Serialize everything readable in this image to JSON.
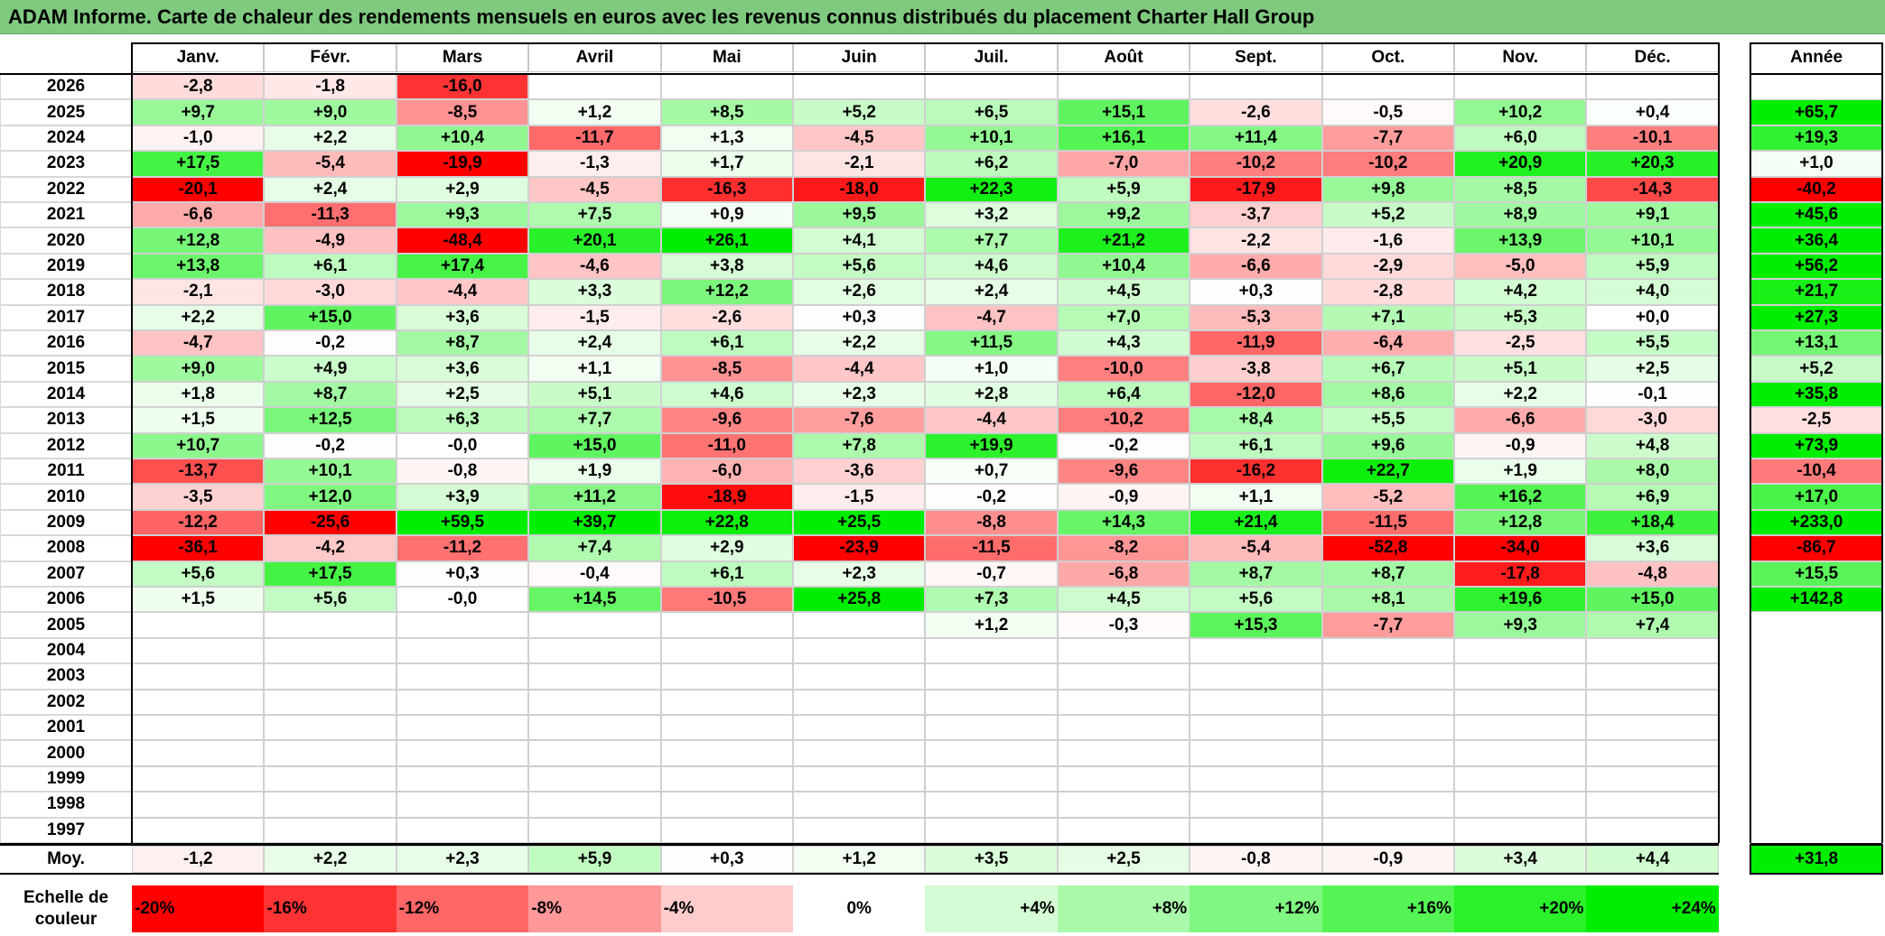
{
  "title": "ADAM Informe. Carte de chaleur des rendements mensuels en euros avec les revenus connus distribués du placement Charter Hall Group",
  "colors": {
    "title_bg": "#7fca7f",
    "neg_max": "#ff0000",
    "pos_max": "#00ee00",
    "neutral": "#ffffff"
  },
  "chart_data": {
    "type": "heatmap",
    "title": "ADAM Informe. Carte de chaleur des rendements mensuels en euros avec les revenus connus distribués du placement Charter Hall Group",
    "months": [
      "Janv.",
      "Févr.",
      "Mars",
      "Avril",
      "Mai",
      "Juin",
      "Juil.",
      "Août",
      "Sept.",
      "Oct.",
      "Nov.",
      "Déc."
    ],
    "year_header": "Année",
    "rows": [
      {
        "year": "2026",
        "values": [
          "-2,8",
          "-1,8",
          "-16,0",
          "",
          "",
          "",
          "",
          "",
          "",
          "",
          "",
          ""
        ],
        "annual": ""
      },
      {
        "year": "2025",
        "values": [
          "+9,7",
          "+9,0",
          "-8,5",
          "+1,2",
          "+8,5",
          "+5,2",
          "+6,5",
          "+15,1",
          "-2,6",
          "-0,5",
          "+10,2",
          "+0,4"
        ],
        "annual": "+65,7"
      },
      {
        "year": "2024",
        "values": [
          "-1,0",
          "+2,2",
          "+10,4",
          "-11,7",
          "+1,3",
          "-4,5",
          "+10,1",
          "+16,1",
          "+11,4",
          "-7,7",
          "+6,0",
          "-10,1"
        ],
        "annual": "+19,3"
      },
      {
        "year": "2023",
        "values": [
          "+17,5",
          "-5,4",
          "-19,9",
          "-1,3",
          "+1,7",
          "-2,1",
          "+6,2",
          "-7,0",
          "-10,2",
          "-10,2",
          "+20,9",
          "+20,3"
        ],
        "annual": "+1,0"
      },
      {
        "year": "2022",
        "values": [
          "-20,1",
          "+2,4",
          "+2,9",
          "-4,5",
          "-16,3",
          "-18,0",
          "+22,3",
          "+5,9",
          "-17,9",
          "+9,8",
          "+8,5",
          "-14,3"
        ],
        "annual": "-40,2"
      },
      {
        "year": "2021",
        "values": [
          "-6,6",
          "-11,3",
          "+9,3",
          "+7,5",
          "+0,9",
          "+9,5",
          "+3,2",
          "+9,2",
          "-3,7",
          "+5,2",
          "+8,9",
          "+9,1"
        ],
        "annual": "+45,6"
      },
      {
        "year": "2020",
        "values": [
          "+12,8",
          "-4,9",
          "-48,4",
          "+20,1",
          "+26,1",
          "+4,1",
          "+7,7",
          "+21,2",
          "-2,2",
          "-1,6",
          "+13,9",
          "+10,1"
        ],
        "annual": "+36,4"
      },
      {
        "year": "2019",
        "values": [
          "+13,8",
          "+6,1",
          "+17,4",
          "-4,6",
          "+3,8",
          "+5,6",
          "+4,6",
          "+10,4",
          "-6,6",
          "-2,9",
          "-5,0",
          "+5,9"
        ],
        "annual": "+56,2"
      },
      {
        "year": "2018",
        "values": [
          "-2,1",
          "-3,0",
          "-4,4",
          "+3,3",
          "+12,2",
          "+2,6",
          "+2,4",
          "+4,5",
          "+0,3",
          "-2,8",
          "+4,2",
          "+4,0"
        ],
        "annual": "+21,7"
      },
      {
        "year": "2017",
        "values": [
          "+2,2",
          "+15,0",
          "+3,6",
          "-1,5",
          "-2,6",
          "+0,3",
          "-4,7",
          "+7,0",
          "-5,3",
          "+7,1",
          "+5,3",
          "+0,0"
        ],
        "annual": "+27,3"
      },
      {
        "year": "2016",
        "values": [
          "-4,7",
          "-0,2",
          "+8,7",
          "+2,4",
          "+6,1",
          "+2,2",
          "+11,5",
          "+4,3",
          "-11,9",
          "-6,4",
          "-2,5",
          "+5,5"
        ],
        "annual": "+13,1"
      },
      {
        "year": "2015",
        "values": [
          "+9,0",
          "+4,9",
          "+3,6",
          "+1,1",
          "-8,5",
          "-4,4",
          "+1,0",
          "-10,0",
          "-3,8",
          "+6,7",
          "+5,1",
          "+2,5"
        ],
        "annual": "+5,2"
      },
      {
        "year": "2014",
        "values": [
          "+1,8",
          "+8,7",
          "+2,5",
          "+5,1",
          "+4,6",
          "+2,3",
          "+2,8",
          "+6,4",
          "-12,0",
          "+8,6",
          "+2,2",
          "-0,1"
        ],
        "annual": "+35,8"
      },
      {
        "year": "2013",
        "values": [
          "+1,5",
          "+12,5",
          "+6,3",
          "+7,7",
          "-9,6",
          "-7,6",
          "-4,4",
          "-10,2",
          "+8,4",
          "+5,5",
          "-6,6",
          "-3,0"
        ],
        "annual": "-2,5"
      },
      {
        "year": "2012",
        "values": [
          "+10,7",
          "-0,2",
          "-0,0",
          "+15,0",
          "-11,0",
          "+7,8",
          "+19,9",
          "-0,2",
          "+6,1",
          "+9,6",
          "-0,9",
          "+4,8"
        ],
        "annual": "+73,9"
      },
      {
        "year": "2011",
        "values": [
          "-13,7",
          "+10,1",
          "-0,8",
          "+1,9",
          "-6,0",
          "-3,6",
          "+0,7",
          "-9,6",
          "-16,2",
          "+22,7",
          "+1,9",
          "+8,0"
        ],
        "annual": "-10,4"
      },
      {
        "year": "2010",
        "values": [
          "-3,5",
          "+12,0",
          "+3,9",
          "+11,2",
          "-18,9",
          "-1,5",
          "-0,2",
          "-0,9",
          "+1,1",
          "-5,2",
          "+16,2",
          "+6,9"
        ],
        "annual": "+17,0"
      },
      {
        "year": "2009",
        "values": [
          "-12,2",
          "-25,6",
          "+59,5",
          "+39,7",
          "+22,8",
          "+25,5",
          "-8,8",
          "+14,3",
          "+21,4",
          "-11,5",
          "+12,8",
          "+18,4"
        ],
        "annual": "+233,0"
      },
      {
        "year": "2008",
        "values": [
          "-36,1",
          "-4,2",
          "-11,2",
          "+7,4",
          "+2,9",
          "-23,9",
          "-11,5",
          "-8,2",
          "-5,4",
          "-52,8",
          "-34,0",
          "+3,6"
        ],
        "annual": "-86,7"
      },
      {
        "year": "2007",
        "values": [
          "+5,6",
          "+17,5",
          "+0,3",
          "-0,4",
          "+6,1",
          "+2,3",
          "-0,7",
          "-6,8",
          "+8,7",
          "+8,7",
          "-17,8",
          "-4,8"
        ],
        "annual": "+15,5"
      },
      {
        "year": "2006",
        "values": [
          "+1,5",
          "+5,6",
          "-0,0",
          "+14,5",
          "-10,5",
          "+25,8",
          "+7,3",
          "+4,5",
          "+5,6",
          "+8,1",
          "+19,6",
          "+15,0"
        ],
        "annual": "+142,8"
      },
      {
        "year": "2005",
        "values": [
          "",
          "",
          "",
          "",
          "",
          "",
          "+1,2",
          "-0,3",
          "+15,3",
          "-7,7",
          "+9,3",
          "+7,4"
        ],
        "annual": ""
      },
      {
        "year": "2004",
        "values": [
          "",
          "",
          "",
          "",
          "",
          "",
          "",
          "",
          "",
          "",
          "",
          ""
        ],
        "annual": ""
      },
      {
        "year": "2003",
        "values": [
          "",
          "",
          "",
          "",
          "",
          "",
          "",
          "",
          "",
          "",
          "",
          ""
        ],
        "annual": ""
      },
      {
        "year": "2002",
        "values": [
          "",
          "",
          "",
          "",
          "",
          "",
          "",
          "",
          "",
          "",
          "",
          ""
        ],
        "annual": ""
      },
      {
        "year": "2001",
        "values": [
          "",
          "",
          "",
          "",
          "",
          "",
          "",
          "",
          "",
          "",
          "",
          ""
        ],
        "annual": ""
      },
      {
        "year": "2000",
        "values": [
          "",
          "",
          "",
          "",
          "",
          "",
          "",
          "",
          "",
          "",
          "",
          ""
        ],
        "annual": ""
      },
      {
        "year": "1999",
        "values": [
          "",
          "",
          "",
          "",
          "",
          "",
          "",
          "",
          "",
          "",
          "",
          ""
        ],
        "annual": ""
      },
      {
        "year": "1998",
        "values": [
          "",
          "",
          "",
          "",
          "",
          "",
          "",
          "",
          "",
          "",
          "",
          ""
        ],
        "annual": ""
      },
      {
        "year": "1997",
        "values": [
          "",
          "",
          "",
          "",
          "",
          "",
          "",
          "",
          "",
          "",
          "",
          ""
        ],
        "annual": ""
      }
    ],
    "average": {
      "label": "Moy.",
      "values": [
        "-1,2",
        "+2,2",
        "+2,3",
        "+5,9",
        "+0,3",
        "+1,2",
        "+3,5",
        "+2,5",
        "-0,8",
        "-0,9",
        "+3,4",
        "+4,4"
      ],
      "annual": "+31,8"
    },
    "scale": {
      "label_line1": "Echelle de",
      "label_line2": "couleur",
      "steps": [
        "-20%",
        "-16%",
        "-12%",
        "-8%",
        "-4%",
        "0%",
        "+4%",
        "+8%",
        "+12%",
        "+16%",
        "+20%",
        "+24%"
      ]
    }
  }
}
